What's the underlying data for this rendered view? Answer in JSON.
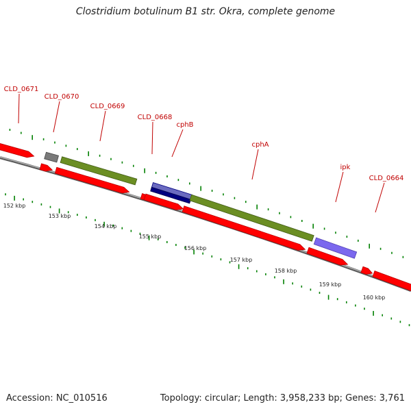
{
  "title": "Clostridium botulinum B1 str. Okra, complete genome",
  "accession": "Accession: NC_010516",
  "summary": "Topology: circular; Length: 3,958,233 bp; Genes: 3,761",
  "colors": {
    "cds": "#ff0000",
    "cdsDark": "#b80000",
    "olive": "#6b8e23",
    "oliveDark": "#3f5a14",
    "navy": "#000080",
    "navyLight": "#6a6ac0",
    "purple": "#7b68ee",
    "gray": "#7a7a7a",
    "tick": "#008000",
    "label": "#c00000",
    "backbone": "#808080"
  },
  "kbp_labels": [
    "152 kbp",
    "153 kbp",
    "154 kbp",
    "155 kbp",
    "156 kbp",
    "157 kbp",
    "158 kbp",
    "159 kbp",
    "160 kbp"
  ],
  "gene_labels": [
    "CLD_0671",
    "CLD_0670",
    "CLD_0669",
    "CLD_0668",
    "cphB",
    "cphA",
    "ipk",
    "CLD_0664"
  ]
}
